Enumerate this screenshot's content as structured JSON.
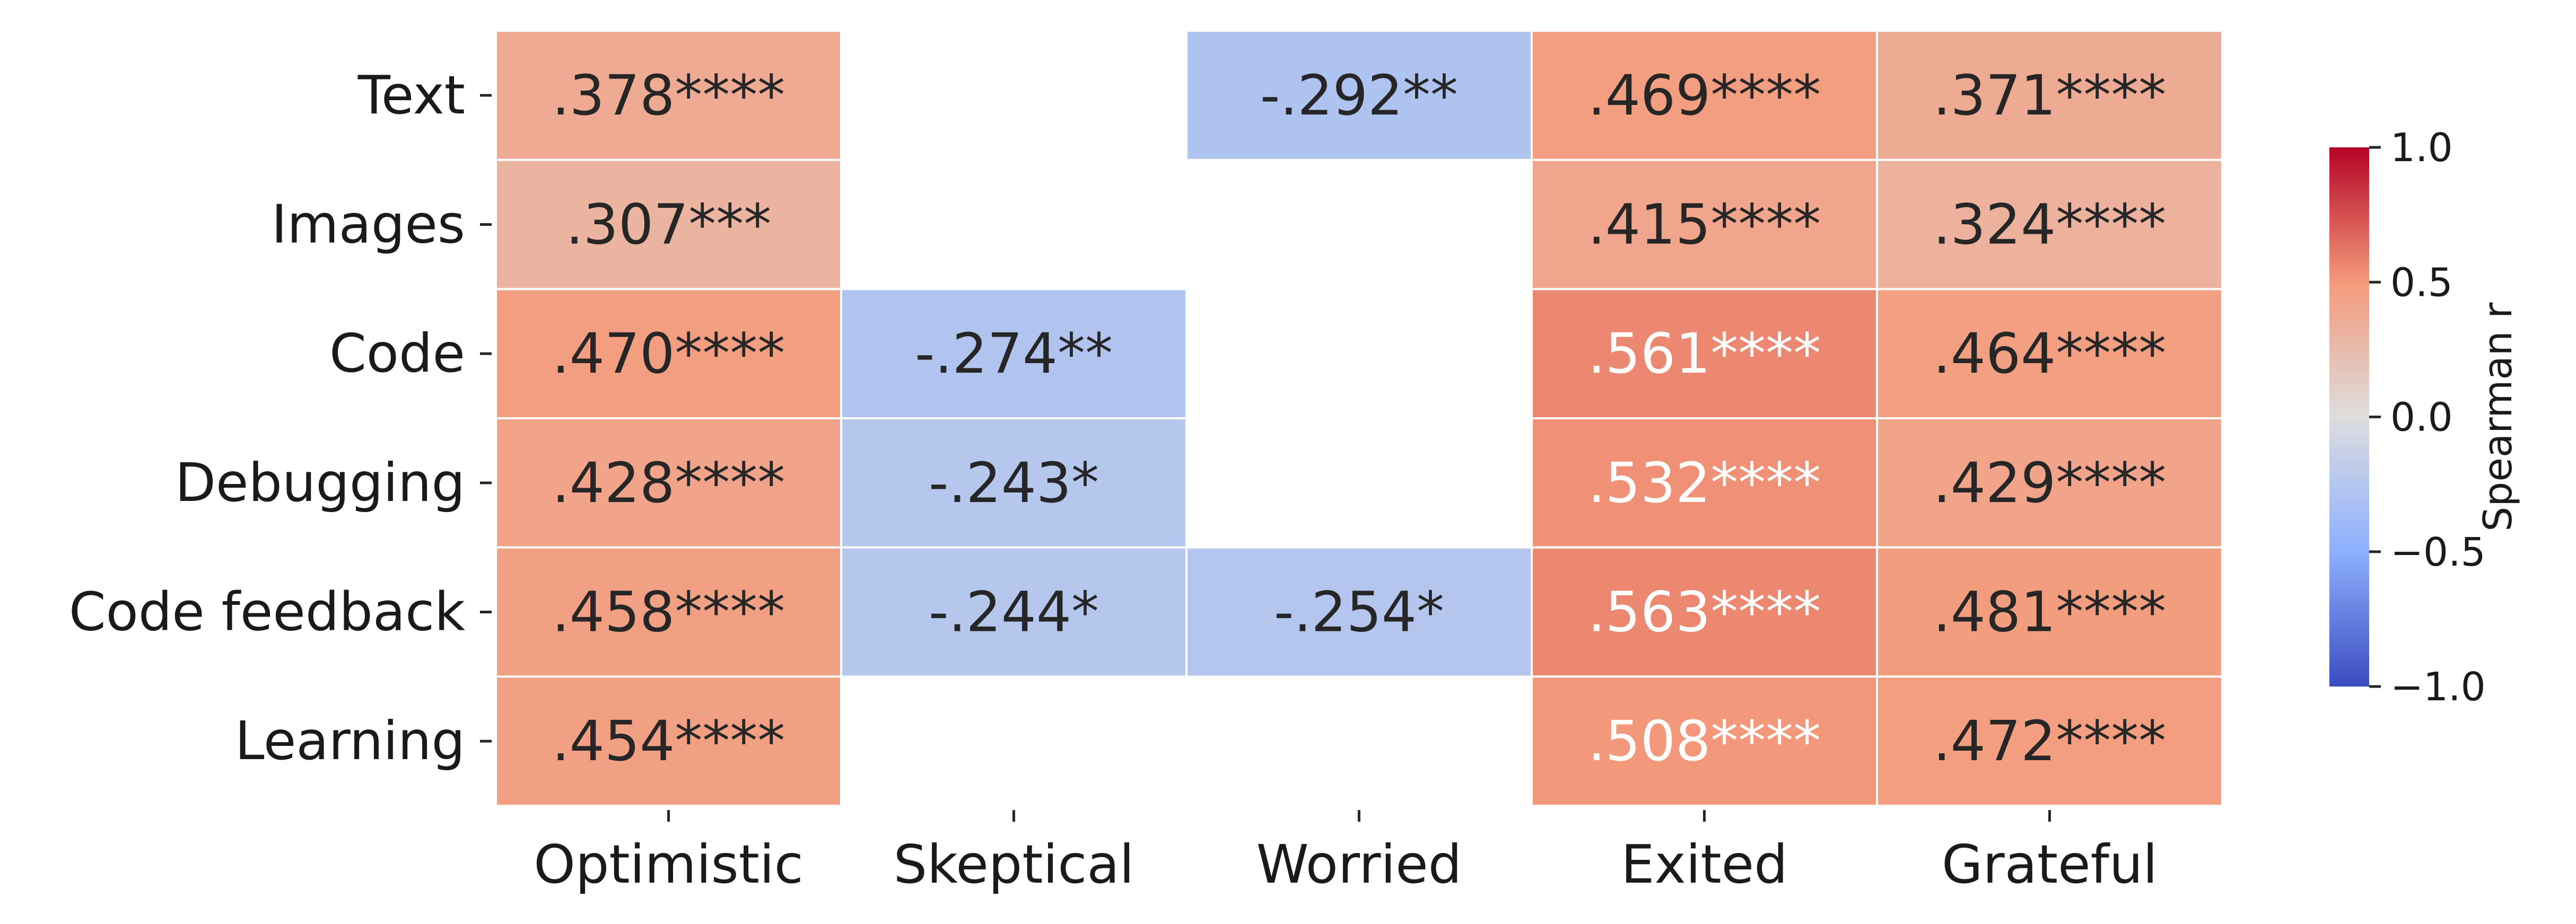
{
  "chart_data": {
    "type": "heatmap",
    "rows": [
      "Text",
      "Images",
      "Code",
      "Debugging",
      "Code feedback",
      "Learning"
    ],
    "columns": [
      "Optimistic",
      "Skeptical",
      "Worried",
      "Exited",
      "Grateful"
    ],
    "values": [
      [
        0.378,
        null,
        -0.292,
        0.469,
        0.371
      ],
      [
        0.307,
        null,
        null,
        0.415,
        0.324
      ],
      [
        0.47,
        -0.274,
        null,
        0.561,
        0.464
      ],
      [
        0.428,
        -0.243,
        null,
        0.532,
        0.429
      ],
      [
        0.458,
        -0.244,
        -0.254,
        0.563,
        0.481
      ],
      [
        0.454,
        null,
        null,
        0.508,
        0.472
      ]
    ],
    "annotations": [
      [
        ".378****",
        "",
        "-.292**",
        ".469****",
        ".371****"
      ],
      [
        ".307***",
        "",
        "",
        ".415****",
        ".324****"
      ],
      [
        ".470****",
        "-.274**",
        "",
        ".561****",
        ".464****"
      ],
      [
        ".428****",
        "-.243*",
        "",
        ".532****",
        ".429****"
      ],
      [
        ".458****",
        "-.244*",
        "-.254*",
        ".563****",
        ".481****"
      ],
      [
        ".454****",
        "",
        "",
        ".508****",
        ".472****"
      ]
    ],
    "colorbar": {
      "label": "Spearman r",
      "range": [
        -1.0,
        1.0
      ],
      "ticks": [
        1.0,
        0.5,
        0.0,
        -0.5,
        -1.0
      ],
      "tick_labels": [
        "1.0",
        "0.5",
        "0.0",
        "−0.5",
        "−1.0"
      ],
      "colormap": "coolwarm"
    }
  }
}
